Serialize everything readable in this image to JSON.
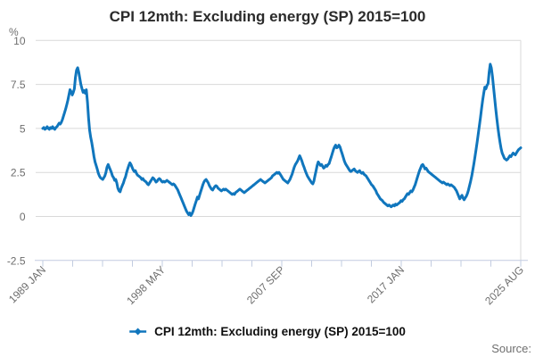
{
  "chart": {
    "source_label": "Source:",
    "x_axis": {
      "minor_tick_count": 17
    },
    "colors": {
      "line": "#1076bd",
      "grid": "#d9d9d9",
      "axis": "#c2cce0",
      "tick_text": "#6e6e6e",
      "title_text": "#2b2b2b",
      "legend_text": "#0f0f0f",
      "source_text": "#6f6f6f",
      "background": "#ffffff"
    }
  },
  "chart_data": {
    "type": "line",
    "title": "CPI 12mth: Excluding energy (SP) 2015=100",
    "ylabel": "%",
    "xlabel": "",
    "ylim": [
      -2.5,
      10
    ],
    "y_ticks": [
      10,
      7.5,
      5,
      2.5,
      0,
      -2.5
    ],
    "grid": "horizontal",
    "legend_position": "bottom",
    "x_start": "1989 JAN",
    "x_end": "2025 AUG",
    "x_frequency": "monthly",
    "x_ticks": [
      {
        "index": 0,
        "label": "1989 JAN"
      },
      {
        "index": 4,
        "label": "1998 MAY"
      },
      {
        "index": 8,
        "label": "2007 SEP"
      },
      {
        "index": 12,
        "label": "2017 JAN"
      },
      {
        "index": 16,
        "label": "2025 AUG"
      }
    ],
    "series": [
      {
        "name": "CPI 12mth: Excluding energy (SP) 2015=100",
        "color": "#1076bd",
        "values": [
          5.0,
          5.05,
          4.95,
          5.0,
          5.1,
          5.0,
          4.95,
          5.05,
          5.0,
          5.1,
          5.0,
          4.95,
          5.05,
          5.1,
          5.2,
          5.3,
          5.25,
          5.35,
          5.5,
          5.7,
          5.9,
          6.1,
          6.35,
          6.6,
          6.9,
          7.2,
          7.1,
          6.9,
          7.05,
          7.25,
          7.9,
          8.3,
          8.45,
          8.2,
          7.85,
          7.5,
          7.25,
          7.05,
          7.15,
          7.0,
          7.2,
          6.5,
          5.6,
          4.9,
          4.5,
          4.2,
          3.8,
          3.4,
          3.1,
          2.9,
          2.7,
          2.45,
          2.3,
          2.2,
          2.15,
          2.1,
          2.2,
          2.3,
          2.5,
          2.8,
          2.95,
          2.8,
          2.65,
          2.5,
          2.3,
          2.2,
          2.05,
          2.1,
          1.9,
          1.6,
          1.45,
          1.4,
          1.6,
          1.75,
          1.9,
          2.1,
          2.25,
          2.5,
          2.7,
          2.9,
          3.05,
          2.95,
          2.8,
          2.65,
          2.55,
          2.6,
          2.45,
          2.35,
          2.3,
          2.25,
          2.2,
          2.1,
          2.15,
          2.05,
          2.0,
          1.95,
          1.85,
          1.8,
          1.9,
          2.0,
          2.1,
          2.2,
          2.15,
          2.05,
          1.95,
          2.0,
          2.1,
          2.15,
          2.1,
          2.0,
          1.95,
          2.0,
          1.95,
          2.0,
          2.05,
          2.0,
          1.95,
          1.9,
          1.85,
          1.8,
          1.85,
          1.8,
          1.7,
          1.6,
          1.5,
          1.35,
          1.2,
          1.05,
          0.9,
          0.75,
          0.6,
          0.45,
          0.3,
          0.2,
          0.1,
          0.2,
          0.05,
          0.15,
          0.3,
          0.5,
          0.7,
          0.9,
          1.1,
          1.0,
          1.2,
          1.4,
          1.6,
          1.8,
          1.95,
          2.05,
          2.1,
          2.0,
          1.9,
          1.75,
          1.65,
          1.55,
          1.5,
          1.6,
          1.7,
          1.75,
          1.7,
          1.6,
          1.55,
          1.5,
          1.45,
          1.5,
          1.55,
          1.5,
          1.55,
          1.5,
          1.45,
          1.4,
          1.35,
          1.3,
          1.25,
          1.3,
          1.25,
          1.35,
          1.4,
          1.45,
          1.5,
          1.55,
          1.5,
          1.45,
          1.4,
          1.35,
          1.4,
          1.45,
          1.5,
          1.55,
          1.6,
          1.65,
          1.7,
          1.75,
          1.8,
          1.85,
          1.9,
          1.95,
          2.0,
          2.05,
          2.1,
          2.05,
          2.0,
          1.95,
          1.9,
          1.95,
          2.0,
          2.05,
          2.1,
          2.15,
          2.2,
          2.3,
          2.35,
          2.4,
          2.45,
          2.5,
          2.45,
          2.5,
          2.4,
          2.3,
          2.2,
          2.1,
          2.05,
          2.0,
          1.95,
          1.9,
          2.0,
          2.1,
          2.25,
          2.4,
          2.6,
          2.8,
          2.95,
          3.05,
          3.15,
          3.3,
          3.45,
          3.3,
          3.15,
          2.95,
          2.8,
          2.6,
          2.45,
          2.3,
          2.2,
          2.1,
          2.0,
          1.9,
          1.85,
          2.0,
          2.3,
          2.6,
          2.9,
          3.1,
          3.0,
          2.9,
          2.95,
          2.85,
          2.75,
          2.8,
          2.9,
          2.85,
          2.95,
          3.0,
          3.2,
          3.4,
          3.6,
          3.8,
          3.95,
          4.05,
          3.9,
          3.95,
          4.05,
          3.95,
          3.75,
          3.55,
          3.35,
          3.15,
          3.0,
          2.9,
          2.8,
          2.7,
          2.6,
          2.55,
          2.6,
          2.65,
          2.7,
          2.6,
          2.55,
          2.5,
          2.55,
          2.6,
          2.5,
          2.45,
          2.5,
          2.4,
          2.35,
          2.3,
          2.2,
          2.1,
          2.0,
          1.9,
          1.8,
          1.75,
          1.65,
          1.55,
          1.45,
          1.3,
          1.2,
          1.1,
          1.0,
          0.95,
          0.9,
          0.8,
          0.75,
          0.7,
          0.65,
          0.6,
          0.65,
          0.6,
          0.55,
          0.6,
          0.65,
          0.6,
          0.7,
          0.65,
          0.7,
          0.75,
          0.8,
          0.9,
          0.85,
          0.95,
          1.0,
          1.1,
          1.2,
          1.3,
          1.25,
          1.35,
          1.45,
          1.4,
          1.5,
          1.65,
          1.8,
          2.0,
          2.2,
          2.4,
          2.6,
          2.75,
          2.9,
          2.95,
          2.85,
          2.7,
          2.75,
          2.65,
          2.55,
          2.5,
          2.45,
          2.4,
          2.35,
          2.3,
          2.25,
          2.2,
          2.15,
          2.1,
          2.05,
          2.0,
          1.95,
          1.9,
          1.95,
          1.9,
          1.85,
          1.8,
          1.85,
          1.8,
          1.75,
          1.8,
          1.75,
          1.7,
          1.65,
          1.55,
          1.45,
          1.3,
          1.15,
          1.0,
          1.1,
          1.2,
          1.05,
          0.95,
          1.05,
          1.15,
          1.3,
          1.5,
          1.75,
          2.0,
          2.3,
          2.65,
          3.0,
          3.4,
          3.8,
          4.25,
          4.7,
          5.15,
          5.6,
          6.1,
          6.6,
          7.0,
          7.35,
          7.25,
          7.45,
          7.55,
          8.2,
          8.65,
          8.45,
          7.95,
          7.35,
          6.75,
          6.15,
          5.6,
          5.05,
          4.6,
          4.2,
          3.85,
          3.6,
          3.45,
          3.3,
          3.25,
          3.2,
          3.25,
          3.35,
          3.45,
          3.4,
          3.5,
          3.6,
          3.55,
          3.5,
          3.6,
          3.7,
          3.8,
          3.85,
          3.9
        ]
      }
    ]
  }
}
